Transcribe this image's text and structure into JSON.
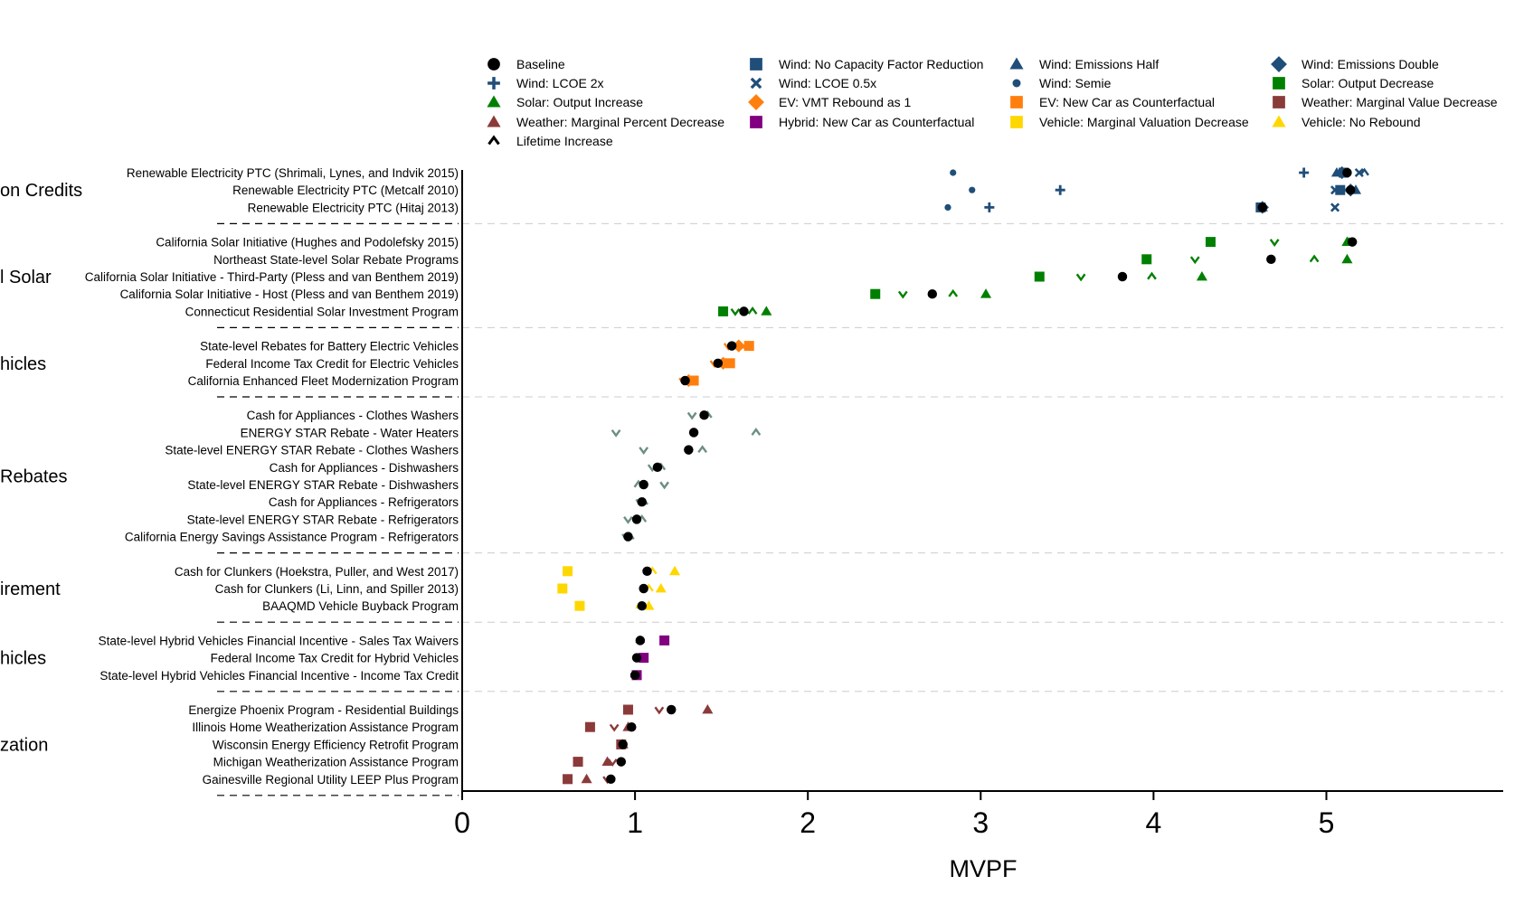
{
  "chart_data": {
    "type": "scatter",
    "xlabel": "MVPF",
    "xlim": [
      0,
      5.4
    ],
    "x_ticks": [
      "0",
      "1",
      "2",
      "3",
      "4",
      "5"
    ],
    "grid": "dashed separators between groups",
    "legend_position": "top",
    "series": [
      {
        "key": "baseline",
        "name": "Baseline",
        "marker": "circle-large",
        "color": "#000000"
      },
      {
        "key": "wind_cap",
        "name": "Wind: No Capacity Factor Reduction",
        "marker": "square",
        "color": "#1f4e79"
      },
      {
        "key": "wind_emh",
        "name": "Wind: Emissions Half",
        "marker": "triangle",
        "color": "#1f4e79"
      },
      {
        "key": "wind_emd",
        "name": "Wind: Emissions Double",
        "marker": "diamond",
        "color": "#1f4e79"
      },
      {
        "key": "wind_lcoe2",
        "name": "Wind: LCOE 2x",
        "marker": "plus",
        "color": "#1f4e79"
      },
      {
        "key": "wind_lcoe05",
        "name": "Wind: LCOE 0.5x",
        "marker": "x",
        "color": "#1f4e79"
      },
      {
        "key": "wind_semie",
        "name": "Wind: Semie",
        "marker": "circle-small",
        "color": "#1f4e79"
      },
      {
        "key": "solar_dec",
        "name": "Solar: Output Decrease",
        "marker": "square",
        "color": "#008000"
      },
      {
        "key": "solar_inc",
        "name": "Solar: Output Increase",
        "marker": "triangle",
        "color": "#008000"
      },
      {
        "key": "ev_vmt",
        "name": "EV: VMT Rebound as 1",
        "marker": "diamond",
        "color": "#ff7f0e"
      },
      {
        "key": "ev_newcar",
        "name": "EV: New Car as Counterfactual",
        "marker": "square",
        "color": "#ff7f0e"
      },
      {
        "key": "weather_mvd",
        "name": "Weather: Marginal Value Decrease",
        "marker": "square",
        "color": "#8b3a3a"
      },
      {
        "key": "weather_mpd",
        "name": "Weather: Marginal Percent Decrease",
        "marker": "triangle",
        "color": "#8b3a3a"
      },
      {
        "key": "hybrid_newcar",
        "name": "Hybrid: New Car as Counterfactual",
        "marker": "square",
        "color": "#800080"
      },
      {
        "key": "vehicle_mvd",
        "name": "Vehicle: Marginal Valuation Decrease",
        "marker": "square",
        "color": "#ffd700"
      },
      {
        "key": "vehicle_norebound",
        "name": "Vehicle: No Rebound",
        "marker": "triangle",
        "color": "#ffd700"
      },
      {
        "key": "lifetime_inc",
        "name": "Lifetime Increase",
        "marker": "caret-up",
        "color": "#000000"
      }
    ],
    "legend_rows": [
      [
        "baseline",
        "wind_cap",
        "wind_emh",
        "wind_emd"
      ],
      [
        "wind_lcoe2",
        "wind_lcoe05",
        "wind_semie",
        "solar_dec"
      ],
      [
        "solar_inc",
        "ev_vmt",
        "ev_newcar",
        "weather_mvd"
      ],
      [
        "weather_mpd",
        "hybrid_newcar",
        "vehicle_mvd",
        "vehicle_norebound"
      ],
      [
        "lifetime_inc"
      ]
    ],
    "groups": [
      {
        "label": "on Credits",
        "color": "#1f4e79",
        "programs": [
          {
            "name": "Renewable Electricity PTC (Shrimali, Lynes, and Indvik 2015)",
            "points": {
              "baseline": 5.12,
              "wind_cap": 5.1,
              "wind_emh": 5.06,
              "wind_emd": 5.09,
              "wind_lcoe2": 4.87,
              "wind_lcoe05": 5.19,
              "wind_semie": 2.84,
              "lifetime_inc": 5.22
            }
          },
          {
            "name": "Renewable Electricity PTC (Metcalf 2010)",
            "points": {
              "baseline": 5.14,
              "wind_cap": 5.08,
              "wind_emh": 5.17,
              "wind_emd": 5.14,
              "wind_lcoe2": 3.46,
              "wind_lcoe05": 5.05,
              "wind_semie": 2.95
            }
          },
          {
            "name": "Renewable Electricity PTC (Hitaj 2013)",
            "points": {
              "baseline": 4.63,
              "wind_cap": 4.62,
              "wind_emh": 4.63,
              "wind_emd": 4.63,
              "wind_lcoe2": 3.05,
              "wind_lcoe05": 5.05,
              "wind_semie": 2.81
            }
          }
        ]
      },
      {
        "label": "l Solar",
        "color": "#008000",
        "programs": [
          {
            "name": "California Solar Initiative (Hughes and Podolefsky 2015)",
            "points": {
              "baseline": 5.15,
              "solar_dec": 4.33,
              "solar_inc": 5.12,
              "lifetime_inc": 5.13,
              "lifetime_dec": 4.7
            }
          },
          {
            "name": "Northeast State-level Solar Rebate Programs",
            "points": {
              "baseline": 4.68,
              "solar_dec": 3.96,
              "solar_inc": 5.12,
              "lifetime_inc": 4.93,
              "lifetime_dec": 4.24
            }
          },
          {
            "name": "California Solar Initiative - Third-Party (Pless and van Benthem 2019)",
            "points": {
              "baseline": 3.82,
              "solar_dec": 3.34,
              "solar_inc": 4.28,
              "lifetime_inc": 3.99,
              "lifetime_dec": 3.58
            }
          },
          {
            "name": "California Solar Initiative - Host (Pless and van Benthem 2019)",
            "points": {
              "baseline": 2.72,
              "solar_dec": 2.39,
              "solar_inc": 3.03,
              "lifetime_inc": 2.84,
              "lifetime_dec": 2.55
            }
          },
          {
            "name": "Connecticut Residential Solar Investment Program",
            "points": {
              "baseline": 1.63,
              "solar_dec": 1.51,
              "solar_inc": 1.76,
              "lifetime_inc": 1.68,
              "lifetime_dec": 1.58
            }
          }
        ]
      },
      {
        "label": "hicles",
        "color": "#ff7f0e",
        "programs": [
          {
            "name": "State-level Rebates for Battery Electric Vehicles",
            "points": {
              "baseline": 1.56,
              "ev_vmt": 1.6,
              "ev_newcar": 1.66,
              "lifetime_inc": 1.61,
              "lifetime_dec": 1.54
            }
          },
          {
            "name": "Federal Income Tax Credit for Electric Vehicles",
            "points": {
              "baseline": 1.48,
              "ev_vmt": 1.51,
              "ev_newcar": 1.55,
              "lifetime_inc": 1.51,
              "lifetime_dec": 1.46
            }
          },
          {
            "name": "California Enhanced Fleet Modernization Program",
            "points": {
              "baseline": 1.29,
              "ev_vmt": 1.31,
              "ev_newcar": 1.34,
              "lifetime_inc": 1.31,
              "lifetime_dec": 1.28
            }
          }
        ]
      },
      {
        "label": "Rebates",
        "color": "#6b8e85",
        "programs": [
          {
            "name": "Cash for Appliances - Clothes Washers",
            "points": {
              "baseline": 1.4,
              "lifetime_inc": 1.42,
              "lifetime_dec": 1.33
            }
          },
          {
            "name": "ENERGY STAR Rebate - Water Heaters",
            "points": {
              "baseline": 1.34,
              "lifetime_inc": 1.7,
              "lifetime_dec": 0.89
            }
          },
          {
            "name": "State-level ENERGY STAR Rebate - Clothes Washers",
            "points": {
              "baseline": 1.31,
              "lifetime_inc": 1.39,
              "lifetime_dec": 1.05
            }
          },
          {
            "name": "Cash for Appliances - Dishwashers",
            "points": {
              "baseline": 1.13,
              "lifetime_inc": 1.15,
              "lifetime_dec": 1.1
            }
          },
          {
            "name": "State-level ENERGY STAR Rebate - Dishwashers",
            "points": {
              "baseline": 1.05,
              "lifetime_inc": 1.02,
              "lifetime_dec": 1.17
            }
          },
          {
            "name": "Cash for Appliances - Refrigerators",
            "points": {
              "baseline": 1.04,
              "lifetime_inc": 1.05,
              "lifetime_dec": 1.03
            }
          },
          {
            "name": "State-level ENERGY STAR Rebate - Refrigerators",
            "points": {
              "baseline": 1.01,
              "lifetime_inc": 1.04,
              "lifetime_dec": 0.96
            }
          },
          {
            "name": "California Energy Savings Assistance Program - Refrigerators",
            "points": {
              "baseline": 0.96,
              "lifetime_inc": 0.97,
              "lifetime_dec": 0.95
            }
          }
        ]
      },
      {
        "label": "irement",
        "color": "#ffd700",
        "programs": [
          {
            "name": "Cash for Clunkers (Hoekstra, Puller, and West 2017)",
            "points": {
              "baseline": 1.07,
              "vehicle_mvd": 0.61,
              "vehicle_norebound": 1.23,
              "lifetime_inc": 1.1
            }
          },
          {
            "name": "Cash for Clunkers (Li, Linn, and Spiller 2013)",
            "points": {
              "baseline": 1.05,
              "vehicle_mvd": 0.58,
              "vehicle_norebound": 1.15,
              "lifetime_inc": 1.08
            }
          },
          {
            "name": "BAAQMD Vehicle Buyback Program",
            "points": {
              "baseline": 1.04,
              "vehicle_mvd": 0.68,
              "vehicle_norebound": 1.08,
              "lifetime_inc": 1.03
            }
          }
        ]
      },
      {
        "label": "hicles",
        "color": "#800080",
        "programs": [
          {
            "name": "State-level Hybrid Vehicles Financial Incentive - Sales Tax Waivers",
            "points": {
              "baseline": 1.03,
              "hybrid_newcar": 1.17,
              "lifetime_inc": 1.03
            }
          },
          {
            "name": "Federal Income Tax Credit for Hybrid Vehicles",
            "points": {
              "baseline": 1.01,
              "hybrid_newcar": 1.05,
              "lifetime_inc": 1.02
            }
          },
          {
            "name": "State-level Hybrid Vehicles Financial Incentive - Income Tax Credit",
            "points": {
              "baseline": 1.0,
              "hybrid_newcar": 1.01,
              "lifetime_inc": 1.0
            }
          }
        ]
      },
      {
        "label": "zation",
        "color": "#8b3a3a",
        "programs": [
          {
            "name": "Energize Phoenix Program - Residential Buildings",
            "points": {
              "baseline": 1.21,
              "weather_mvd": 0.96,
              "weather_mpd": 1.42,
              "lifetime_dec": 1.14
            }
          },
          {
            "name": "Illinois Home Weatherization Assistance Program",
            "points": {
              "baseline": 0.98,
              "weather_mvd": 0.74,
              "weather_mpd": 0.96,
              "lifetime_dec": 0.88
            }
          },
          {
            "name": "Wisconsin Energy Efficiency Retrofit Program",
            "points": {
              "baseline": 0.93,
              "weather_mvd": 0.92,
              "weather_mpd": 0.93,
              "lifetime_dec": 0.92
            }
          },
          {
            "name": "Michigan Weatherization Assistance Program",
            "points": {
              "baseline": 0.92,
              "weather_mvd": 0.67,
              "weather_mpd": 0.84,
              "lifetime_dec": 0.87
            }
          },
          {
            "name": "Gainesville Regional Utility LEEP Plus Program",
            "points": {
              "baseline": 0.86,
              "weather_mvd": 0.61,
              "weather_mpd": 0.72,
              "lifetime_dec": 0.84
            }
          }
        ]
      }
    ]
  }
}
